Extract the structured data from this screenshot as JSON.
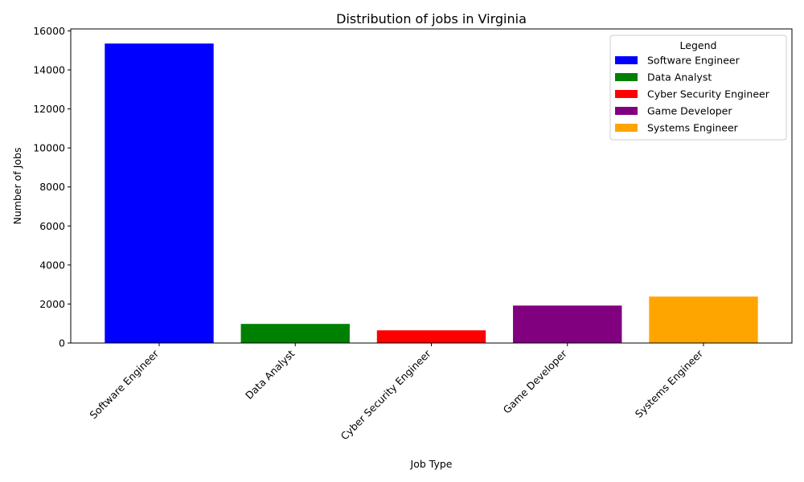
{
  "chart_data": {
    "type": "bar",
    "title": "Distribution of jobs in Virginia",
    "xlabel": "Job Type",
    "ylabel": "Number of Jobs",
    "categories": [
      "Software Engineer",
      "Data Analyst",
      "Cyber Security Engineer",
      "Game Developer",
      "Systems Engineer"
    ],
    "values": [
      15350,
      980,
      650,
      1920,
      2380
    ],
    "colors": [
      "#0000ff",
      "#008000",
      "#ff0000",
      "#800080",
      "#ffa500"
    ],
    "ylim": [
      0,
      16100
    ],
    "yticks": [
      0,
      2000,
      4000,
      6000,
      8000,
      10000,
      12000,
      14000,
      16000
    ],
    "grid": false,
    "legend": {
      "title": "Legend",
      "placement": "top-right",
      "entries": [
        "Software Engineer",
        "Data Analyst",
        "Cyber Security Engineer",
        "Game Developer",
        "Systems Engineer"
      ]
    }
  }
}
